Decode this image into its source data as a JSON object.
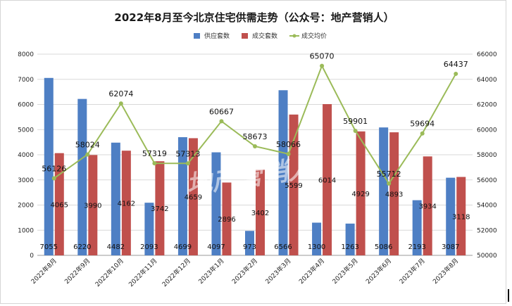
{
  "chart_data": {
    "type": "bar",
    "title": "2022年8月至今北京住宅供需走势（公众号：地产营销人）",
    "categories": [
      "2022年8月",
      "2022年9月",
      "2022年10月",
      "2022年11月",
      "2022年12月",
      "2023年1月",
      "2023年2月",
      "2023年3月",
      "2023年4月",
      "2023年5月",
      "2023年6月",
      "2023年7月",
      "2023年8月"
    ],
    "series": [
      {
        "name": "供应套数",
        "type": "bar",
        "axis": "left",
        "color": "#4e7fc4",
        "values": [
          7055,
          6220,
          4482,
          2093,
          4699,
          4097,
          973,
          6566,
          1300,
          1263,
          5086,
          2193,
          3087
        ]
      },
      {
        "name": "成交套数",
        "type": "bar",
        "axis": "left",
        "color": "#c0504d",
        "values": [
          4065,
          3990,
          4162,
          3742,
          4659,
          2896,
          3402,
          5599,
          6014,
          4929,
          4893,
          3934,
          3118
        ]
      },
      {
        "name": "成交均价",
        "type": "line",
        "axis": "right",
        "color": "#9bbb59",
        "values": [
          56126,
          58024,
          62074,
          57319,
          57313,
          60667,
          58673,
          58066,
          65070,
          59901,
          55712,
          59694,
          64437
        ]
      }
    ],
    "ylim_left": [
      0,
      8000
    ],
    "yticks_left": [
      0,
      1000,
      2000,
      3000,
      4000,
      5000,
      6000,
      7000,
      8000
    ],
    "ylim_right": [
      50000,
      66000
    ],
    "yticks_right": [
      50000,
      52000,
      54000,
      56000,
      58000,
      60000,
      62000,
      64000,
      66000
    ],
    "grid": true,
    "legend": "top-center",
    "watermark": "地产营销人"
  }
}
